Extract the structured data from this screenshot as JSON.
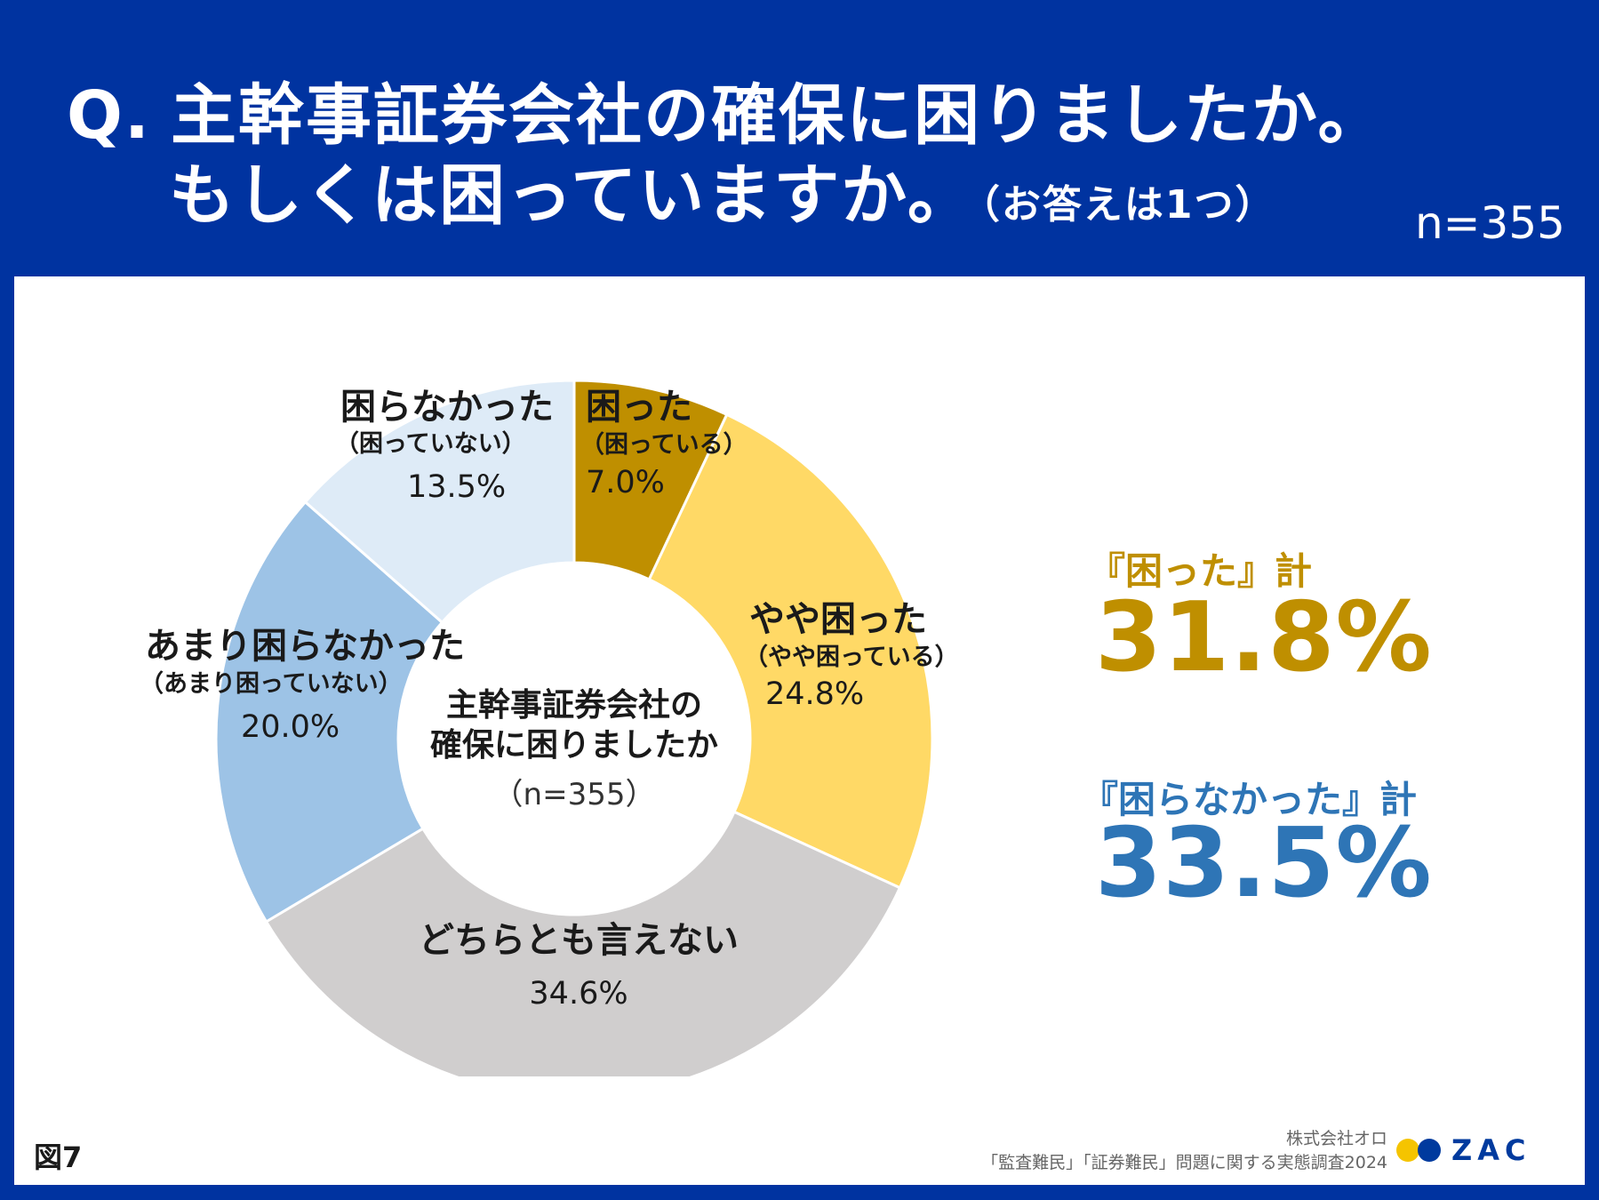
{
  "header": {
    "q_prefix": "Q.",
    "line1": "主幹事証券会社の確保に困りましたか。",
    "line2": "もしくは困っていますか。",
    "note": "（お答えは1つ）",
    "n": "n=355"
  },
  "center": {
    "title_line1": "主幹事証券会社の",
    "title_line2": "確保に困りましたか",
    "n": "（n=355）"
  },
  "chart_data": {
    "type": "pie",
    "donut": true,
    "start": "12 o'clock, clockwise",
    "categories": [
      "困った",
      "やや困った",
      "どちらとも言えない",
      "あまり困らなかった",
      "困らなかった"
    ],
    "sublabels": [
      "（困っている）",
      "（やや困っている）",
      "",
      "（あまり困っていない）",
      "（困っていない）"
    ],
    "values": [
      7.0,
      24.8,
      34.6,
      20.0,
      13.5
    ],
    "value_labels": [
      "7.0%",
      "24.8%",
      "34.6%",
      "20.0%",
      "13.5%"
    ],
    "colors": [
      "#bf8f00",
      "#ffd966",
      "#d0cece",
      "#9dc3e6",
      "#deebf7"
    ],
    "n": 355,
    "summaries": [
      {
        "label": "『困った』計",
        "value": "31.8%",
        "color": "#bf8f00"
      },
      {
        "label": "『困らなかった』計",
        "value": "33.5%",
        "color": "#2e75b6"
      }
    ]
  },
  "footer": {
    "figure_no": "図7",
    "company": "株式会社オロ",
    "survey": "「監査難民」「証券難民」問題に関する実態調査2024",
    "logo_text": "ZAC"
  }
}
